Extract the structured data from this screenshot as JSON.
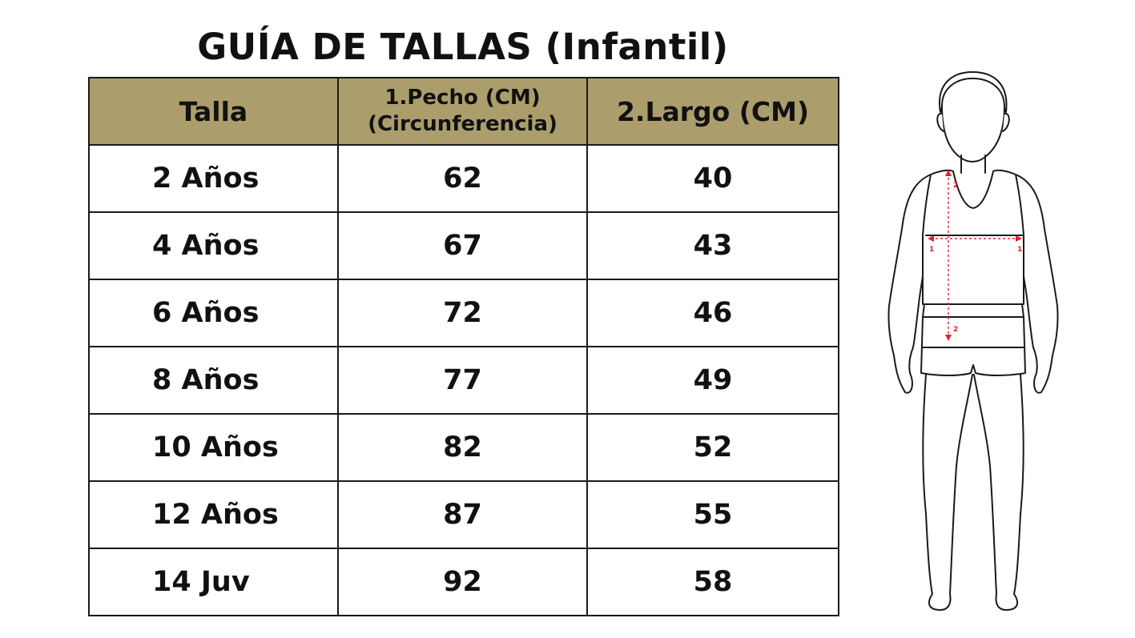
{
  "title": "GUÍA DE TALLAS (Infantil)",
  "table": {
    "headers": {
      "size": "Talla",
      "chest_line1": "1.Pecho (CM)",
      "chest_line2": "(Circunferencia)",
      "length": "2.Largo (CM)"
    },
    "rows": [
      {
        "size": "2 Años",
        "chest": "62",
        "length": "40"
      },
      {
        "size": "4 Años",
        "chest": "67",
        "length": "43"
      },
      {
        "size": "6 Años",
        "chest": "72",
        "length": "46"
      },
      {
        "size": "8 Años",
        "chest": "77",
        "length": "49"
      },
      {
        "size": "10 Años",
        "chest": "82",
        "length": "52"
      },
      {
        "size": "12 Años",
        "chest": "87",
        "length": "55"
      },
      {
        "size": "14 Juv",
        "chest": "92",
        "length": "58"
      }
    ]
  },
  "figure": {
    "chest_marker": "1",
    "length_marker": "2"
  },
  "colors": {
    "header_background": "#ac9d6c",
    "border": "#1a1a1a",
    "measure_marker": "#e0202a"
  }
}
